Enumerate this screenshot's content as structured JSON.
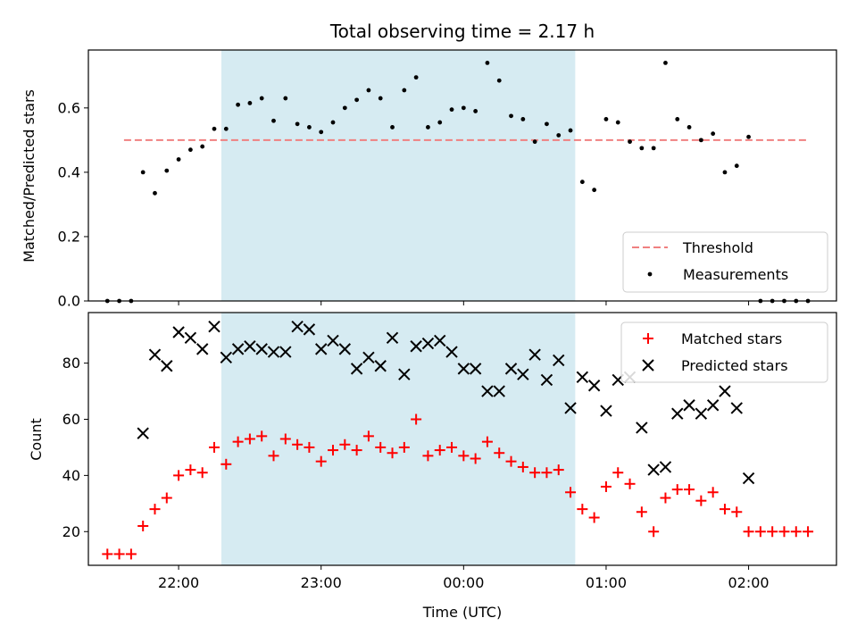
{
  "chart_data": [
    {
      "type": "scatter",
      "title": "Total observing time = 2.17 h",
      "xlabel": "",
      "ylabel": "Matched/Predicted stars",
      "ylim": [
        0,
        0.78
      ],
      "yticks": [
        "0.0",
        "0.2",
        "0.4",
        "0.6"
      ],
      "grid": false,
      "legend_position": "lower-right",
      "threshold": {
        "name": "Threshold",
        "value": 0.5,
        "x_start": "21:37",
        "x_end": "02:25",
        "color": "#f08080"
      },
      "highlight": {
        "x_start": "22:18",
        "x_end": "00:47",
        "color": "#add8e6"
      },
      "series": [
        {
          "name": "Measurements",
          "color": "#000000",
          "points": [
            [
              "21:30",
              0.0
            ],
            [
              "21:35",
              0.0
            ],
            [
              "21:40",
              0.0
            ],
            [
              "21:45",
              0.4
            ],
            [
              "21:50",
              0.335
            ],
            [
              "21:55",
              0.405
            ],
            [
              "22:00",
              0.44
            ],
            [
              "22:05",
              0.47
            ],
            [
              "22:10",
              0.48
            ],
            [
              "22:15",
              0.535
            ],
            [
              "22:20",
              0.535
            ],
            [
              "22:25",
              0.61
            ],
            [
              "22:30",
              0.615
            ],
            [
              "22:35",
              0.63
            ],
            [
              "22:40",
              0.56
            ],
            [
              "22:45",
              0.63
            ],
            [
              "22:50",
              0.55
            ],
            [
              "22:55",
              0.54
            ],
            [
              "23:00",
              0.525
            ],
            [
              "23:05",
              0.555
            ],
            [
              "23:10",
              0.6
            ],
            [
              "23:15",
              0.625
            ],
            [
              "23:20",
              0.655
            ],
            [
              "23:25",
              0.63
            ],
            [
              "23:30",
              0.54
            ],
            [
              "23:35",
              0.655
            ],
            [
              "23:40",
              0.695
            ],
            [
              "23:45",
              0.54
            ],
            [
              "23:50",
              0.555
            ],
            [
              "23:55",
              0.595
            ],
            [
              "00:00",
              0.6
            ],
            [
              "00:05",
              0.59
            ],
            [
              "00:10",
              0.74
            ],
            [
              "00:15",
              0.685
            ],
            [
              "00:20",
              0.575
            ],
            [
              "00:25",
              0.565
            ],
            [
              "00:30",
              0.495
            ],
            [
              "00:35",
              0.55
            ],
            [
              "00:40",
              0.515
            ],
            [
              "00:45",
              0.53
            ],
            [
              "00:50",
              0.37
            ],
            [
              "00:55",
              0.345
            ],
            [
              "01:00",
              0.565
            ],
            [
              "01:05",
              0.555
            ],
            [
              "01:10",
              0.495
            ],
            [
              "01:15",
              0.475
            ],
            [
              "01:20",
              0.475
            ],
            [
              "01:25",
              0.74
            ],
            [
              "01:30",
              0.565
            ],
            [
              "01:35",
              0.54
            ],
            [
              "01:40",
              0.5
            ],
            [
              "01:45",
              0.52
            ],
            [
              "01:50",
              0.4
            ],
            [
              "01:55",
              0.42
            ],
            [
              "02:00",
              0.51
            ],
            [
              "02:05",
              0.0
            ],
            [
              "02:10",
              0.0
            ],
            [
              "02:15",
              0.0
            ],
            [
              "02:20",
              0.0
            ],
            [
              "02:25",
              0.0
            ]
          ]
        }
      ]
    },
    {
      "type": "scatter",
      "title": "",
      "xlabel": "Time (UTC)",
      "ylabel": "Count",
      "ylim": [
        8,
        98
      ],
      "yticks": [
        "20",
        "40",
        "60",
        "80"
      ],
      "xticks": [
        "22:00",
        "23:00",
        "00:00",
        "01:00",
        "02:00"
      ],
      "xlim": [
        "21:22",
        "02:37"
      ],
      "grid": false,
      "legend_position": "upper-right",
      "highlight": {
        "x_start": "22:18",
        "x_end": "00:47",
        "color": "#add8e6"
      },
      "series": [
        {
          "name": "Matched stars",
          "marker": "plus",
          "color": "#ff0000",
          "points": [
            [
              "21:30",
              12
            ],
            [
              "21:35",
              12
            ],
            [
              "21:40",
              12
            ],
            [
              "21:45",
              22
            ],
            [
              "21:50",
              28
            ],
            [
              "21:55",
              32
            ],
            [
              "22:00",
              40
            ],
            [
              "22:05",
              42
            ],
            [
              "22:10",
              41
            ],
            [
              "22:15",
              50
            ],
            [
              "22:20",
              44
            ],
            [
              "22:25",
              52
            ],
            [
              "22:30",
              53
            ],
            [
              "22:35",
              54
            ],
            [
              "22:40",
              47
            ],
            [
              "22:45",
              53
            ],
            [
              "22:50",
              51
            ],
            [
              "22:55",
              50
            ],
            [
              "23:00",
              45
            ],
            [
              "23:05",
              49
            ],
            [
              "23:10",
              51
            ],
            [
              "23:15",
              49
            ],
            [
              "23:20",
              54
            ],
            [
              "23:25",
              50
            ],
            [
              "23:30",
              48
            ],
            [
              "23:35",
              50
            ],
            [
              "23:40",
              60
            ],
            [
              "23:45",
              47
            ],
            [
              "23:50",
              49
            ],
            [
              "23:55",
              50
            ],
            [
              "00:00",
              47
            ],
            [
              "00:05",
              46
            ],
            [
              "00:10",
              52
            ],
            [
              "00:15",
              48
            ],
            [
              "00:20",
              45
            ],
            [
              "00:25",
              43
            ],
            [
              "00:30",
              41
            ],
            [
              "00:35",
              41
            ],
            [
              "00:40",
              42
            ],
            [
              "00:45",
              34
            ],
            [
              "00:50",
              28
            ],
            [
              "00:55",
              25
            ],
            [
              "01:00",
              36
            ],
            [
              "01:05",
              41
            ],
            [
              "01:10",
              37
            ],
            [
              "01:15",
              27
            ],
            [
              "01:20",
              20
            ],
            [
              "01:25",
              32
            ],
            [
              "01:30",
              35
            ],
            [
              "01:35",
              35
            ],
            [
              "01:40",
              31
            ],
            [
              "01:45",
              34
            ],
            [
              "01:50",
              28
            ],
            [
              "01:55",
              27
            ],
            [
              "02:00",
              20
            ],
            [
              "02:05",
              20
            ],
            [
              "02:10",
              20
            ],
            [
              "02:15",
              20
            ],
            [
              "02:20",
              20
            ],
            [
              "02:25",
              20
            ]
          ]
        },
        {
          "name": "Predicted stars",
          "marker": "x",
          "color": "#000000",
          "points": [
            [
              "21:45",
              55
            ],
            [
              "21:50",
              83
            ],
            [
              "21:55",
              79
            ],
            [
              "22:00",
              91
            ],
            [
              "22:05",
              89
            ],
            [
              "22:10",
              85
            ],
            [
              "22:15",
              93
            ],
            [
              "22:20",
              82
            ],
            [
              "22:25",
              85
            ],
            [
              "22:30",
              86
            ],
            [
              "22:35",
              85
            ],
            [
              "22:40",
              84
            ],
            [
              "22:45",
              84
            ],
            [
              "22:50",
              93
            ],
            [
              "22:55",
              92
            ],
            [
              "23:00",
              85
            ],
            [
              "23:05",
              88
            ],
            [
              "23:10",
              85
            ],
            [
              "23:15",
              78
            ],
            [
              "23:20",
              82
            ],
            [
              "23:25",
              79
            ],
            [
              "23:30",
              89
            ],
            [
              "23:35",
              76
            ],
            [
              "23:40",
              86
            ],
            [
              "23:45",
              87
            ],
            [
              "23:50",
              88
            ],
            [
              "23:55",
              84
            ],
            [
              "00:00",
              78
            ],
            [
              "00:05",
              78
            ],
            [
              "00:10",
              70
            ],
            [
              "00:15",
              70
            ],
            [
              "00:20",
              78
            ],
            [
              "00:25",
              76
            ],
            [
              "00:30",
              83
            ],
            [
              "00:35",
              74
            ],
            [
              "00:40",
              81
            ],
            [
              "00:45",
              64
            ],
            [
              "00:50",
              75
            ],
            [
              "00:55",
              72
            ],
            [
              "01:00",
              63
            ],
            [
              "01:05",
              74
            ],
            [
              "01:10",
              75
            ],
            [
              "01:15",
              57
            ],
            [
              "01:20",
              42
            ],
            [
              "01:25",
              43
            ],
            [
              "01:30",
              62
            ],
            [
              "01:35",
              65
            ],
            [
              "01:40",
              62
            ],
            [
              "01:45",
              65
            ],
            [
              "01:50",
              70
            ],
            [
              "01:55",
              64
            ],
            [
              "02:00",
              39
            ]
          ]
        }
      ]
    }
  ]
}
